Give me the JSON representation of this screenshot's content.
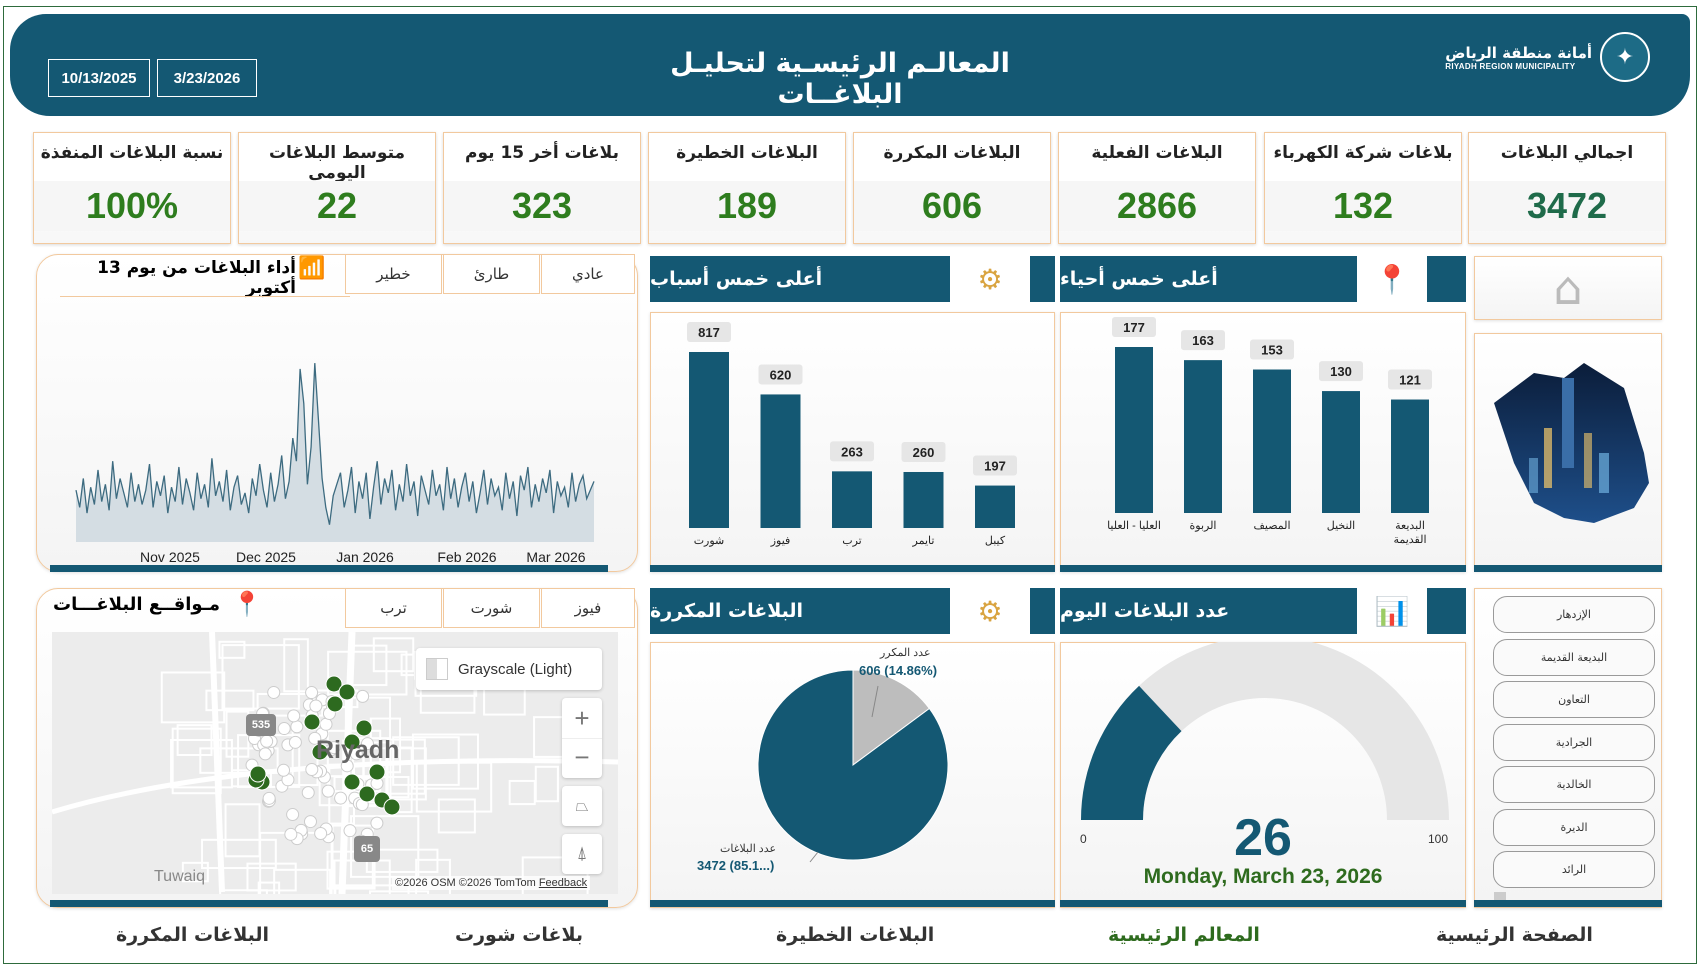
{
  "header": {
    "title": "المعالـم الرئيسـية لتحليـل البلاغــات",
    "date_start": "10/13/2025",
    "date_end": "3/23/2026",
    "logo_ar": "أمانة منطقة الرياض",
    "logo_en": "RIYADH REGION MUNICIPALITY"
  },
  "kpis": [
    {
      "label": "اجمالي البلاغات",
      "value": "3472"
    },
    {
      "label": "بلاغات شركة الكهرباء",
      "value": "132"
    },
    {
      "label": "البلاغات الفعلية",
      "value": "2866"
    },
    {
      "label": "البلاغات المكررة",
      "value": "606"
    },
    {
      "label": "البلاغات الخطيرة",
      "value": "189"
    },
    {
      "label": "بلاغات أخر 15 يوم",
      "value": "323"
    },
    {
      "label": "متوسط البلاغات اليومي",
      "value": "22"
    },
    {
      "label": "نسبة البلاغات المنفذة",
      "value": "100%"
    }
  ],
  "trend": {
    "title": "أداء البلاغات من يوم 13 أكتوبر",
    "tabs": [
      "عادي",
      "طارئ",
      "خطير"
    ]
  },
  "locations": {
    "title": "مـواقــع البلاغـــات",
    "tabs": [
      "فيوز",
      "شورت",
      "ترب"
    ],
    "map_style": "Grayscale (Light)",
    "city": "Riyadh",
    "town": "Tuwaiq",
    "road1": "535",
    "road2": "65",
    "copyright": "©2026 OSM ©2026 TomTom",
    "feedback": "Feedback",
    "zoom_in": "+",
    "zoom_out": "−"
  },
  "top_causes": {
    "title": "أعلى خمس أسباب"
  },
  "top_districts": {
    "title": "أعلى خمس أحياء"
  },
  "repeated": {
    "title": "البلاغات المكررة",
    "slice_repeat_label": "عدد المكرر",
    "slice_repeat_value": "606 (14.86%)",
    "slice_total_label": "عدد البلاغات",
    "slice_total_value": "3472 (85.1...)"
  },
  "today": {
    "title": "عدد البلاغات اليوم",
    "value": "26",
    "min": "0",
    "max": "100",
    "date": "Monday, March 23, 2026"
  },
  "slicer": [
    "الإزدهار",
    "البديعة القديمة",
    "التعاون",
    "الجرادية",
    "الخالدية",
    "الديرة",
    "الرائد"
  ],
  "nav": [
    "الصفحة الرئيسية",
    "المعالم الرئيسية",
    "البلاغات الخطيرة",
    "بلاغات شورت",
    "البلاغات المكررة"
  ],
  "colors": {
    "primary": "#145873",
    "accent_green": "#2e7d1e",
    "gold": "#d9a441",
    "pie_gray": "#bdbdbd",
    "gauge_bg": "#e6e6e6"
  },
  "chart_data": [
    {
      "type": "bar",
      "title": "أعلى خمس أسباب",
      "categories": [
        "شورت",
        "فيوز",
        "ترب",
        "تايمر",
        "كيبل"
      ],
      "values": [
        817,
        620,
        263,
        260,
        197
      ]
    },
    {
      "type": "bar",
      "title": "أعلى خمس أحياء",
      "categories": [
        "العليا - العليا",
        "الربوة",
        "المصيف",
        "النخيل",
        "البديعة القديمة"
      ],
      "values": [
        177,
        163,
        153,
        130,
        121
      ]
    },
    {
      "type": "pie",
      "title": "البلاغات المكررة",
      "categories": [
        "عدد المكرر",
        "عدد البلاغات"
      ],
      "values": [
        606,
        3472
      ]
    },
    {
      "type": "area",
      "title": "أداء البلاغات من يوم 13 أكتوبر",
      "x_ticks": [
        "Nov 2025",
        "Dec 2025",
        "Jan 2026",
        "Feb 2026",
        "Mar 2026"
      ],
      "values": [
        18,
        12,
        22,
        10,
        19,
        13,
        25,
        14,
        20,
        11,
        28,
        15,
        22,
        17,
        12,
        24,
        14,
        20,
        13,
        18,
        27,
        12,
        21,
        16,
        23,
        10,
        19,
        14,
        26,
        13,
        22,
        17,
        11,
        24,
        15,
        20,
        12,
        29,
        16,
        21,
        14,
        25,
        11,
        19,
        23,
        13,
        17,
        10,
        22,
        16,
        27,
        18,
        12,
        24,
        14,
        20,
        30,
        15,
        21,
        36,
        28,
        60,
        48,
        20,
        33,
        62,
        42,
        22,
        12,
        6,
        16,
        20,
        24,
        12,
        18,
        26,
        10,
        21,
        15,
        24,
        8,
        19,
        28,
        13,
        22,
        17,
        25,
        11,
        20,
        14,
        27,
        16,
        21,
        9,
        23,
        18,
        13,
        25,
        16,
        20,
        11,
        26,
        15,
        22,
        12,
        19,
        24,
        14,
        21,
        10,
        17,
        25,
        13,
        22,
        16,
        19,
        11,
        24,
        15,
        21,
        9,
        23,
        18,
        26,
        12,
        20,
        14,
        22,
        17,
        25,
        10,
        21,
        16,
        19,
        12,
        24,
        14,
        20,
        23,
        15,
        18,
        21
      ],
      "ylim": [
        0,
        70
      ]
    }
  ]
}
